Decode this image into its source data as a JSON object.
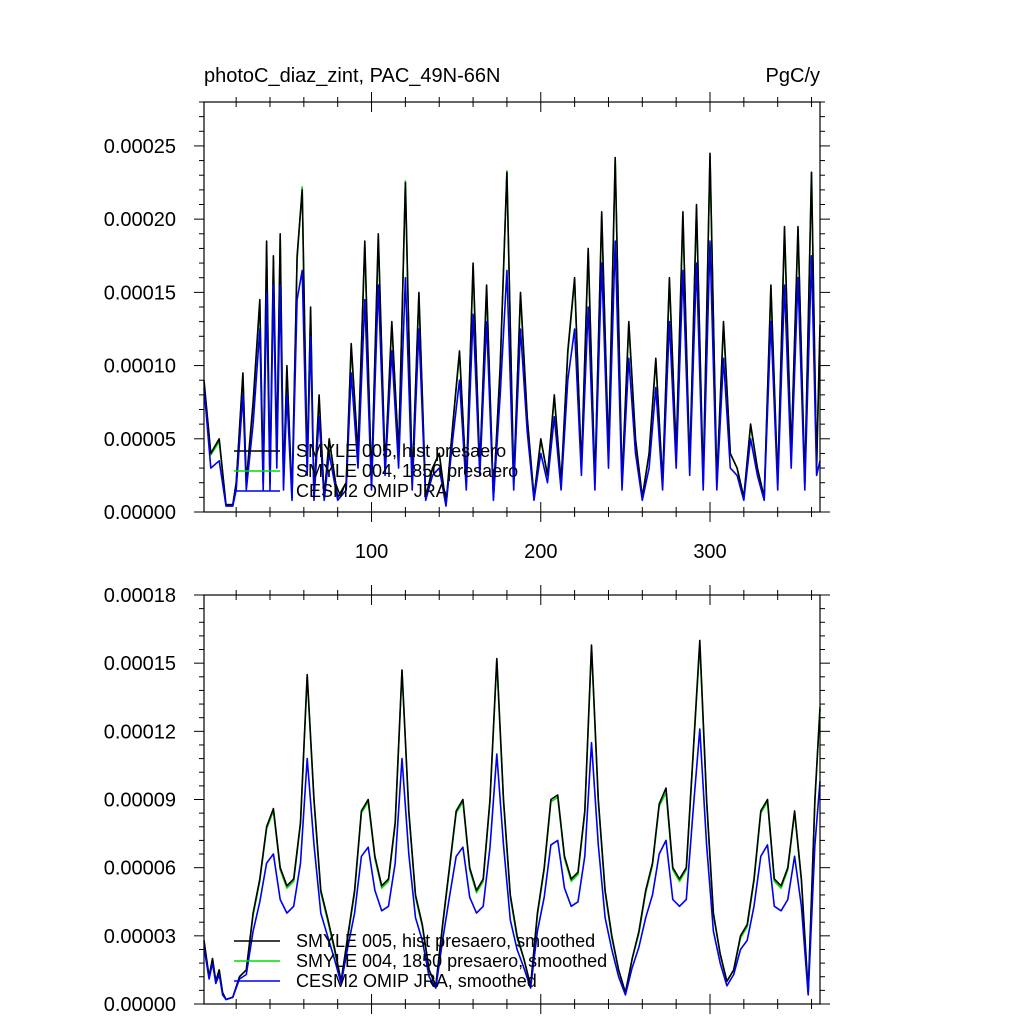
{
  "figure": {
    "title_left": "photoC_diaz_zint, PAC_49N-66N",
    "title_right": "PgC/y"
  },
  "colors": {
    "hist": "#000000",
    "presaero1850": "#00dd00",
    "cesm2": "#0000ee"
  },
  "chart_data": [
    {
      "type": "line",
      "xlim": [
        1,
        365
      ],
      "ylim": [
        0,
        0.00028
      ],
      "xticks": [
        100,
        200,
        300
      ],
      "xtick_labels": [
        "100",
        "200",
        "300"
      ],
      "yticks": [
        0,
        5e-05,
        0.0001,
        0.00015,
        0.0002,
        0.00025
      ],
      "ytick_labels": [
        "0.00000",
        "0.00005",
        "0.00010",
        "0.00015",
        "0.00020",
        "0.00025"
      ],
      "legend_position": "bottom-left",
      "x": [
        1,
        5,
        10,
        14,
        18,
        20,
        24,
        26,
        30,
        34,
        36,
        38,
        40,
        42,
        44,
        46,
        48,
        50,
        53,
        56,
        59,
        62,
        64,
        66,
        69,
        72,
        75,
        80,
        85,
        88,
        92,
        96,
        100,
        104,
        108,
        112,
        116,
        120,
        124,
        128,
        132,
        136,
        140,
        144,
        148,
        152,
        156,
        160,
        164,
        168,
        172,
        176,
        180,
        184,
        188,
        192,
        196,
        200,
        204,
        208,
        212,
        216,
        220,
        224,
        228,
        232,
        236,
        240,
        244,
        248,
        252,
        256,
        260,
        264,
        268,
        272,
        276,
        280,
        284,
        288,
        292,
        296,
        300,
        304,
        308,
        312,
        316,
        320,
        324,
        328,
        332,
        336,
        340,
        344,
        348,
        352,
        356,
        360,
        363,
        365
      ],
      "series": [
        {
          "name": "SMYLE 005, hist presaero",
          "values": [
            9e-05,
            4e-05,
            5e-05,
            5e-06,
            5e-06,
            2e-05,
            9.5e-05,
            2e-05,
            7.5e-05,
            0.000145,
            2e-05,
            0.000185,
            2e-05,
            0.000175,
            4e-05,
            0.00019,
            2e-05,
            0.0001,
            1e-05,
            0.000175,
            0.00022,
            3e-05,
            0.00014,
            1e-05,
            8e-05,
            1e-05,
            5e-05,
            1e-05,
            2e-05,
            0.000115,
            4e-05,
            0.000185,
            2e-05,
            0.00019,
            3e-05,
            0.00013,
            4e-05,
            0.000225,
            2e-05,
            0.00015,
            1e-05,
            3e-05,
            4e-05,
            5e-06,
            6e-05,
            0.00011,
            2e-05,
            0.00017,
            3e-05,
            0.000155,
            1e-05,
            0.0001,
            0.000232,
            2e-05,
            0.00015,
            6.5e-05,
            1e-05,
            5e-05,
            2.5e-05,
            8e-05,
            2e-05,
            0.00011,
            0.00016,
            3e-05,
            0.00018,
            2e-05,
            0.000205,
            4e-05,
            0.000242,
            2e-05,
            0.00013,
            5e-05,
            1e-05,
            4e-05,
            0.000105,
            2e-05,
            0.00016,
            4e-05,
            0.000205,
            3e-05,
            0.00021,
            2e-05,
            0.000245,
            2e-05,
            0.00013,
            4e-05,
            3e-05,
            1e-05,
            6e-05,
            3e-05,
            1e-05,
            0.000155,
            2e-05,
            0.000195,
            4e-05,
            0.000195,
            2e-05,
            0.000232,
            3e-05,
            0.000128
          ]
        },
        {
          "name": "SMYLE 004, 1850 presaero",
          "values": [
            8.8e-05,
            3.9e-05,
            4.8e-05,
            5e-06,
            5e-06,
            2e-05,
            9.3e-05,
            2e-05,
            7.3e-05,
            0.000142,
            2e-05,
            0.000182,
            2e-05,
            0.000172,
            4e-05,
            0.000187,
            2e-05,
            9.8e-05,
            1e-05,
            0.000172,
            0.000222,
            3e-05,
            0.000138,
            1e-05,
            7.8e-05,
            1e-05,
            4.9e-05,
            1e-05,
            2e-05,
            0.000113,
            4e-05,
            0.000182,
            2e-05,
            0.000187,
            3e-05,
            0.000128,
            4e-05,
            0.000226,
            2e-05,
            0.000148,
            1e-05,
            3e-05,
            4e-05,
            5e-06,
            5.9e-05,
            0.000108,
            2e-05,
            0.000168,
            3e-05,
            0.000153,
            1e-05,
            9.8e-05,
            0.000233,
            2e-05,
            0.000148,
            6.4e-05,
            1e-05,
            4.9e-05,
            2.5e-05,
            7.8e-05,
            2e-05,
            0.000108,
            0.000158,
            3e-05,
            0.000178,
            2e-05,
            0.000202,
            4e-05,
            0.000241,
            2e-05,
            0.000128,
            4.9e-05,
            1e-05,
            4e-05,
            0.000103,
            2e-05,
            0.000158,
            4e-05,
            0.000202,
            3e-05,
            0.000207,
            2e-05,
            0.000243,
            2e-05,
            0.000128,
            4e-05,
            3e-05,
            1e-05,
            5.9e-05,
            3e-05,
            1e-05,
            0.000153,
            2e-05,
            0.000193,
            4e-05,
            0.000193,
            2e-05,
            0.000232,
            3e-05,
            0.000126
          ]
        },
        {
          "name": "CESM2 OMIP JRA",
          "values": [
            8.5e-05,
            3e-05,
            3.5e-05,
            4e-06,
            4e-06,
            1.5e-05,
            8e-05,
            1.5e-05,
            6e-05,
            0.000125,
            1.5e-05,
            0.00015,
            1.5e-05,
            0.000155,
            3e-05,
            0.000155,
            1.5e-05,
            8e-05,
            8e-06,
            0.000145,
            0.000165,
            2.5e-05,
            0.00012,
            8e-06,
            6.5e-05,
            8e-06,
            4e-05,
            8e-06,
            1.5e-05,
            9.5e-05,
            3e-05,
            0.000145,
            1.5e-05,
            0.000155,
            2.5e-05,
            0.00011,
            3e-05,
            0.00016,
            1.5e-05,
            0.000125,
            8e-06,
            2.5e-05,
            3e-05,
            4e-06,
            5e-05,
            9e-05,
            1.5e-05,
            0.000135,
            2.5e-05,
            0.00013,
            8e-06,
            8e-05,
            0.000165,
            1.5e-05,
            0.000125,
            5.5e-05,
            8e-06,
            4e-05,
            2e-05,
            6.5e-05,
            1.5e-05,
            9e-05,
            0.000125,
            2.5e-05,
            0.00014,
            1.5e-05,
            0.00017,
            3e-05,
            0.000185,
            1.5e-05,
            0.000105,
            4e-05,
            8e-06,
            3e-05,
            8.5e-05,
            1.5e-05,
            0.00013,
            3e-05,
            0.000165,
            2.5e-05,
            0.00017,
            1.5e-05,
            0.000185,
            1.5e-05,
            0.000105,
            3e-05,
            2.5e-05,
            8e-06,
            5e-05,
            2.5e-05,
            8e-06,
            0.00013,
            1.5e-05,
            0.000155,
            3e-05,
            0.00016,
            1.5e-05,
            0.000175,
            2.5e-05,
            3.5e-05
          ]
        }
      ]
    },
    {
      "type": "line",
      "xlim": [
        1,
        365
      ],
      "ylim": [
        0,
        0.00018
      ],
      "xticks": [
        100,
        200,
        300
      ],
      "yticks": [
        0,
        3e-05,
        6e-05,
        9e-05,
        0.00012,
        0.00015,
        0.00018
      ],
      "ytick_labels": [
        "0.00000",
        "0.00003",
        "0.00006",
        "0.00009",
        "0.00012",
        "0.00015",
        "0.00018"
      ],
      "legend_position": "bottom-left",
      "x": [
        1,
        4,
        6,
        8,
        10,
        12,
        14,
        18,
        22,
        26,
        30,
        34,
        38,
        42,
        46,
        50,
        54,
        58,
        62,
        66,
        70,
        74,
        78,
        82,
        86,
        90,
        94,
        98,
        102,
        106,
        110,
        114,
        118,
        122,
        126,
        130,
        134,
        138,
        142,
        146,
        150,
        154,
        158,
        162,
        166,
        170,
        174,
        178,
        182,
        186,
        190,
        194,
        198,
        202,
        206,
        210,
        214,
        218,
        222,
        226,
        230,
        234,
        238,
        242,
        246,
        250,
        254,
        258,
        262,
        266,
        270,
        274,
        278,
        282,
        286,
        290,
        294,
        298,
        302,
        306,
        310,
        314,
        318,
        322,
        326,
        330,
        334,
        338,
        342,
        346,
        350,
        354,
        358,
        362,
        365
      ],
      "series": [
        {
          "name": "SMYLE 005, hist presaero, smoothed",
          "values": [
            2.8e-05,
            1.2e-05,
            2e-05,
            1e-05,
            1.5e-05,
            5e-06,
            2e-06,
            3e-06,
            1.2e-05,
            1.5e-05,
            4e-05,
            5.5e-05,
            7.8e-05,
            8.6e-05,
            6e-05,
            5.2e-05,
            5.5e-05,
            8e-05,
            0.000145,
            9e-05,
            5e-05,
            3.8e-05,
            2.5e-05,
            1e-05,
            3e-05,
            5e-05,
            8.5e-05,
            9e-05,
            6.5e-05,
            5.2e-05,
            5.5e-05,
            8e-05,
            0.000147,
            8.5e-05,
            4.8e-05,
            3.5e-05,
            1.5e-05,
            8e-06,
            3.5e-05,
            6e-05,
            8.5e-05,
            9e-05,
            6e-05,
            5e-05,
            5.5e-05,
            9e-05,
            0.000152,
            9e-05,
            4.8e-05,
            3e-05,
            2e-05,
            8e-06,
            4e-05,
            6e-05,
            9e-05,
            9.2e-05,
            6.5e-05,
            5.5e-05,
            5.8e-05,
            8.5e-05,
            0.000158,
            9e-05,
            5e-05,
            3e-05,
            1.5e-05,
            5e-06,
            2e-05,
            3.2e-05,
            5e-05,
            6.2e-05,
            8.8e-05,
            9.5e-05,
            6e-05,
            5.5e-05,
            6e-05,
            0.00011,
            0.00016,
            9e-05,
            4e-05,
            2.2e-05,
            1e-05,
            1.5e-05,
            3e-05,
            3.5e-05,
            5.5e-05,
            8.5e-05,
            9e-05,
            5.5e-05,
            5.2e-05,
            6e-05,
            8.5e-05,
            5.5e-05,
            5e-06,
            9e-05,
            0.00013
          ]
        },
        {
          "name": "SMYLE 004, 1850 presaero, smoothed",
          "values": [
            2.7e-05,
            1.2e-05,
            2e-05,
            1e-05,
            1.5e-05,
            5e-06,
            2e-06,
            3e-06,
            1.2e-05,
            1.5e-05,
            3.9e-05,
            5.4e-05,
            7.7e-05,
            8.5e-05,
            5.9e-05,
            5.1e-05,
            5.4e-05,
            7.9e-05,
            0.000144,
            8.9e-05,
            4.9e-05,
            3.7e-05,
            2.4e-05,
            1e-05,
            2.9e-05,
            4.9e-05,
            8.4e-05,
            8.9e-05,
            6.4e-05,
            5.1e-05,
            5.4e-05,
            7.9e-05,
            0.000147,
            8.4e-05,
            4.7e-05,
            3.4e-05,
            1.5e-05,
            8e-06,
            3.4e-05,
            5.9e-05,
            8.4e-05,
            8.9e-05,
            5.9e-05,
            4.9e-05,
            5.4e-05,
            8.9e-05,
            0.000151,
            8.9e-05,
            4.7e-05,
            2.9e-05,
            2e-05,
            8e-06,
            3.9e-05,
            5.9e-05,
            8.9e-05,
            9.1e-05,
            6.4e-05,
            5.4e-05,
            5.7e-05,
            8.4e-05,
            0.000157,
            8.9e-05,
            4.9e-05,
            2.9e-05,
            1.5e-05,
            5e-06,
            2e-05,
            3.1e-05,
            4.9e-05,
            6.1e-05,
            8.7e-05,
            9.3e-05,
            5.9e-05,
            5.4e-05,
            5.9e-05,
            0.000109,
            0.000158,
            8.9e-05,
            3.9e-05,
            2.2e-05,
            1e-05,
            1.5e-05,
            2.9e-05,
            3.4e-05,
            5.4e-05,
            8.4e-05,
            8.9e-05,
            5.4e-05,
            5.1e-05,
            5.9e-05,
            8.4e-05,
            5.4e-05,
            5e-06,
            8.9e-05,
            0.000131
          ]
        },
        {
          "name": "CESM2 OMIP JRA, smoothed",
          "values": [
            2.5e-05,
            1.1e-05,
            1.8e-05,
            9e-06,
            1.3e-05,
            4e-06,
            2e-06,
            3e-06,
            1.1e-05,
            1.3e-05,
            3.2e-05,
            4.5e-05,
            6.2e-05,
            6.6e-05,
            4.6e-05,
            4e-05,
            4.3e-05,
            6.2e-05,
            0.000108,
            7e-05,
            4e-05,
            3e-05,
            2e-05,
            9e-06,
            2.5e-05,
            4e-05,
            6.5e-05,
            6.9e-05,
            5e-05,
            4.1e-05,
            4.3e-05,
            6.2e-05,
            0.000108,
            6.6e-05,
            3.8e-05,
            2.8e-05,
            1.2e-05,
            7e-06,
            2.8e-05,
            4.7e-05,
            6.5e-05,
            6.9e-05,
            4.7e-05,
            4e-05,
            4.3e-05,
            6.9e-05,
            0.00011,
            7e-05,
            3.7e-05,
            2.4e-05,
            1.6e-05,
            7e-06,
            3.2e-05,
            4.7e-05,
            7e-05,
            7.2e-05,
            5.1e-05,
            4.3e-05,
            4.5e-05,
            6.5e-05,
            0.000115,
            7e-05,
            3.8e-05,
            2.4e-05,
            1.2e-05,
            4e-06,
            1.6e-05,
            2.5e-05,
            3.8e-05,
            4.8e-05,
            6.6e-05,
            7.2e-05,
            4.6e-05,
            4.3e-05,
            4.6e-05,
            8.5e-05,
            0.000121,
            7e-05,
            3.2e-05,
            1.8e-05,
            8e-06,
            1.3e-05,
            2.4e-05,
            2.8e-05,
            4.3e-05,
            6.5e-05,
            7e-05,
            4.3e-05,
            4.1e-05,
            4.6e-05,
            6.5e-05,
            4.3e-05,
            4e-06,
            7e-05,
            9.8e-05
          ]
        }
      ]
    }
  ]
}
